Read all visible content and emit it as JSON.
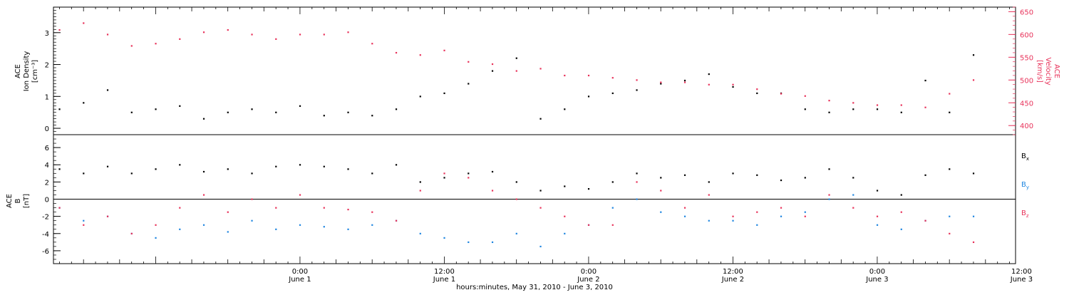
{
  "colors": {
    "black": "#000000",
    "red": "#e8325a",
    "blue": "#1f86e0"
  },
  "x_axis": {
    "range_hours": [
      -20.5,
      59.5
    ],
    "title": "hours:minutes, May 31, 2010 - June  3, 2010",
    "ticks": [
      {
        "h": 0,
        "time": "0:00",
        "date": "June 1"
      },
      {
        "h": 12,
        "time": "12:00",
        "date": "June 1"
      },
      {
        "h": 24,
        "time": "0:00",
        "date": "June 2"
      },
      {
        "h": 36,
        "time": "12:00",
        "date": "June 2"
      },
      {
        "h": 48,
        "time": "0:00",
        "date": "June 3"
      },
      {
        "h": 60,
        "time": "12:00",
        "date": "June 3"
      }
    ]
  },
  "chart_data": [
    {
      "type": "scatter",
      "panel": "top",
      "ylabel_left": [
        "ACE",
        "Ion Density",
        "[cm⁻³]"
      ],
      "ylabel_right": [
        "ACE",
        "Velocity",
        "[km/s]"
      ],
      "ylim_left": [
        -0.2,
        3.8
      ],
      "ylim_right": [
        380,
        660
      ],
      "yticks_left": [
        0,
        1,
        2,
        3
      ],
      "yticks_right": [
        400,
        450,
        500,
        550,
        600,
        650
      ],
      "series": [
        {
          "axis": "left",
          "color": "black",
          "x": [
            -20,
            -18,
            -16,
            -14,
            -12,
            -10,
            -8,
            -6,
            -4,
            -2,
            0,
            2,
            4,
            6,
            8,
            10,
            12,
            14,
            16,
            18,
            20,
            22,
            24,
            26,
            28,
            30,
            32,
            34,
            36,
            38,
            40,
            42,
            44,
            46,
            48,
            50,
            52,
            54,
            56
          ],
          "y": [
            0.6,
            0.8,
            1.2,
            0.5,
            0.6,
            0.7,
            0.3,
            0.5,
            0.6,
            0.5,
            0.7,
            0.4,
            0.5,
            0.4,
            0.6,
            1.0,
            1.1,
            1.4,
            1.8,
            2.2,
            0.3,
            0.6,
            1.0,
            1.1,
            1.2,
            1.4,
            1.5,
            1.7,
            1.3,
            1.1,
            1.1,
            0.6,
            0.5,
            0.6,
            0.6,
            0.5,
            1.5,
            0.5,
            2.3
          ]
        },
        {
          "axis": "right",
          "color": "red",
          "x": [
            -20,
            -18,
            -16,
            -14,
            -12,
            -10,
            -8,
            -6,
            -4,
            -2,
            0,
            2,
            4,
            6,
            8,
            10,
            12,
            14,
            16,
            18,
            20,
            22,
            24,
            26,
            28,
            30,
            32,
            34,
            36,
            38,
            40,
            42,
            44,
            46,
            48,
            50,
            52,
            54,
            56
          ],
          "y": [
            610,
            625,
            600,
            575,
            580,
            590,
            605,
            610,
            600,
            590,
            600,
            600,
            605,
            580,
            560,
            555,
            565,
            540,
            535,
            520,
            525,
            510,
            510,
            505,
            500,
            495,
            495,
            490,
            490,
            480,
            470,
            465,
            455,
            450,
            445,
            445,
            440,
            470,
            500
          ]
        }
      ]
    },
    {
      "type": "scatter",
      "panel": "bottom",
      "ylabel": [
        "ACE",
        "B",
        "[nT]"
      ],
      "ylim": [
        -7.5,
        7.5
      ],
      "yticks": [
        -6,
        -4,
        -2,
        0,
        2,
        4,
        6
      ],
      "series": [
        {
          "name": "Bx",
          "color": "black",
          "x": [
            -20,
            -18,
            -16,
            -14,
            -12,
            -10,
            -8,
            -6,
            -4,
            -2,
            0,
            2,
            4,
            6,
            8,
            10,
            12,
            14,
            16,
            18,
            20,
            22,
            24,
            26,
            28,
            30,
            32,
            34,
            36,
            38,
            40,
            42,
            44,
            46,
            48,
            50,
            52,
            54,
            56
          ],
          "y": [
            3.5,
            3,
            3.8,
            3,
            3.5,
            4,
            3.2,
            3.5,
            3,
            3.8,
            4,
            3.8,
            3.5,
            3,
            4,
            2,
            2.5,
            3,
            3.2,
            2,
            1,
            1.5,
            1.2,
            2,
            3,
            2.5,
            2.8,
            2,
            3,
            2.8,
            2.2,
            2.5,
            3.5,
            2.5,
            1,
            0.5,
            2.8,
            3.5,
            3
          ]
        },
        {
          "name": "By",
          "color": "blue",
          "x": [
            -20,
            -18,
            -16,
            -14,
            -12,
            -10,
            -8,
            -6,
            -4,
            -2,
            0,
            2,
            4,
            6,
            8,
            10,
            12,
            14,
            16,
            18,
            20,
            22,
            24,
            26,
            28,
            30,
            32,
            34,
            36,
            38,
            40,
            42,
            44,
            46,
            48,
            50,
            52,
            54,
            56
          ],
          "y": [
            -1,
            -2.5,
            -2,
            -4,
            -4.5,
            -3.5,
            -3,
            -3.8,
            -2.5,
            -3.5,
            -3,
            -3.2,
            -3.5,
            -3,
            -2.5,
            -4,
            -4.5,
            -5,
            -5,
            -4,
            -5.5,
            -4,
            -3,
            -1,
            0,
            -1.5,
            -2,
            -2.5,
            -2.5,
            -3,
            -2,
            -1.5,
            0,
            0.5,
            -3,
            -3.5,
            -2.5,
            -2,
            -2
          ]
        },
        {
          "name": "Bz",
          "color": "red",
          "x": [
            -20,
            -18,
            -16,
            -14,
            -12,
            -10,
            -8,
            -6,
            -4,
            -2,
            0,
            2,
            4,
            6,
            8,
            10,
            12,
            14,
            16,
            18,
            20,
            22,
            24,
            26,
            28,
            30,
            32,
            34,
            36,
            38,
            40,
            42,
            44,
            46,
            48,
            50,
            52,
            54,
            56
          ],
          "y": [
            -1,
            -3,
            -2,
            -4,
            -3,
            -1,
            0.5,
            -1.5,
            0,
            -1,
            0.5,
            -1,
            -1.2,
            -1.5,
            -2.5,
            1,
            3,
            2.5,
            1,
            0,
            -1,
            -2,
            -3,
            -3,
            2,
            1,
            -1,
            0.5,
            -2,
            -1.5,
            -1,
            -2,
            0.5,
            -1,
            -2,
            -1.5,
            -2.5,
            -4,
            -5
          ]
        }
      ],
      "legend": [
        {
          "label": "Bx",
          "base": "B",
          "sub": "x",
          "color": "black"
        },
        {
          "label": "By",
          "base": "B",
          "sub": "y",
          "color": "blue"
        },
        {
          "label": "Bz",
          "base": "B",
          "sub": "z",
          "color": "red"
        }
      ]
    }
  ]
}
